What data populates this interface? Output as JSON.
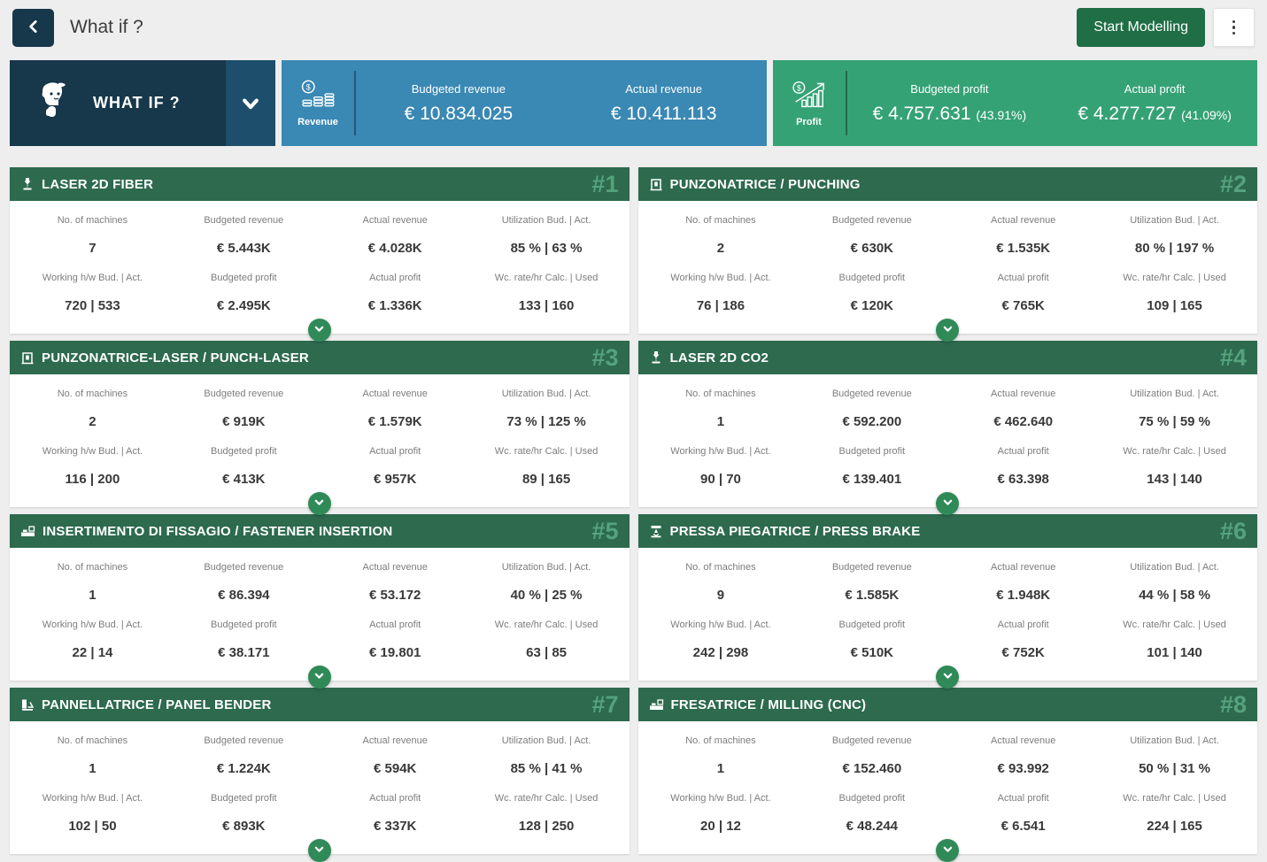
{
  "colors": {
    "navy": "#17374b",
    "navy_light": "#1d4e6b",
    "blue": "#3a88b4",
    "green": "#35a276",
    "header_green": "#2d6a4e",
    "button_green": "#206e45",
    "expand_green": "#2f8a58",
    "rank_green": "#55a27c",
    "page_bg": "#eeeeee"
  },
  "header": {
    "title": "What if ?",
    "start_modelling_label": "Start Modelling"
  },
  "summary": {
    "whatif_label": "WHAT IF ?",
    "revenue": {
      "tab_label": "Revenue",
      "budgeted_label": "Budgeted revenue",
      "budgeted_value": "€ 10.834.025",
      "actual_label": "Actual revenue",
      "actual_value": "€ 10.411.113"
    },
    "profit": {
      "tab_label": "Profit",
      "budgeted_label": "Budgeted profit",
      "budgeted_value": "€ 4.757.631",
      "budgeted_pct": "(43.91%)",
      "actual_label": "Actual profit",
      "actual_value": "€ 4.277.727",
      "actual_pct": "(41.09%)"
    }
  },
  "field_labels": {
    "no_of_machines": "No. of machines",
    "budgeted_revenue": "Budgeted revenue",
    "actual_revenue": "Actual revenue",
    "utilization": "Utilization Bud. | Act.",
    "working_hw": "Working h/w Bud. | Act.",
    "budgeted_profit": "Budgeted profit",
    "actual_profit": "Actual profit",
    "wc_rate": "Wc. rate/hr Calc. | Used"
  },
  "machines": [
    {
      "rank": "#1",
      "name": "LASER 2D FIBER",
      "icon": "laser-cutter-icon",
      "no_of_machines": "7",
      "budgeted_revenue": "€ 5.443K",
      "actual_revenue": "€ 4.028K",
      "utilization": "85 % | 63 %",
      "working_hw": "720 | 533",
      "budgeted_profit": "€ 2.495K",
      "actual_profit": "€ 1.336K",
      "wc_rate": "133 | 160"
    },
    {
      "rank": "#2",
      "name": "PUNZONATRICE / PUNCHING",
      "icon": "punching-machine-icon",
      "no_of_machines": "2",
      "budgeted_revenue": "€ 630K",
      "actual_revenue": "€ 1.535K",
      "utilization": "80 % | 197 %",
      "working_hw": "76 | 186",
      "budgeted_profit": "€ 120K",
      "actual_profit": "€ 765K",
      "wc_rate": "109 | 165"
    },
    {
      "rank": "#3",
      "name": "PUNZONATRICE-LASER / PUNCH-LASER",
      "icon": "punching-machine-icon",
      "no_of_machines": "2",
      "budgeted_revenue": "€ 919K",
      "actual_revenue": "€ 1.579K",
      "utilization": "73 % | 125 %",
      "working_hw": "116 | 200",
      "budgeted_profit": "€ 413K",
      "actual_profit": "€ 957K",
      "wc_rate": "89 | 165"
    },
    {
      "rank": "#4",
      "name": "LASER 2D CO2",
      "icon": "laser-cutter-icon",
      "no_of_machines": "1",
      "budgeted_revenue": "€ 592.200",
      "actual_revenue": "€ 462.640",
      "utilization": "75 % | 59 %",
      "working_hw": "90 | 70",
      "budgeted_profit": "€ 139.401",
      "actual_profit": "€ 63.398",
      "wc_rate": "143 | 140"
    },
    {
      "rank": "#5",
      "name": "INSERTIMENTO DI FISSAGIO / FASTENER INSERTION",
      "icon": "fastener-insertion-icon",
      "no_of_machines": "1",
      "budgeted_revenue": "€ 86.394",
      "actual_revenue": "€ 53.172",
      "utilization": "40 % | 25 %",
      "working_hw": "22 | 14",
      "budgeted_profit": "€ 38.171",
      "actual_profit": "€ 19.801",
      "wc_rate": "63 | 85"
    },
    {
      "rank": "#6",
      "name": "PRESSA PIEGATRICE / PRESS BRAKE",
      "icon": "press-brake-icon",
      "no_of_machines": "9",
      "budgeted_revenue": "€ 1.585K",
      "actual_revenue": "€ 1.948K",
      "utilization": "44 % | 58 %",
      "working_hw": "242 | 298",
      "budgeted_profit": "€ 510K",
      "actual_profit": "€ 752K",
      "wc_rate": "101 | 140"
    },
    {
      "rank": "#7",
      "name": "PANNELLATRICE / PANEL BENDER",
      "icon": "panel-bender-icon",
      "no_of_machines": "1",
      "budgeted_revenue": "€ 1.224K",
      "actual_revenue": "€ 594K",
      "utilization": "85 % | 41 %",
      "working_hw": "102 | 50",
      "budgeted_profit": "€ 893K",
      "actual_profit": "€ 337K",
      "wc_rate": "128 | 250"
    },
    {
      "rank": "#8",
      "name": "FRESATRICE / MILLING (CNC)",
      "icon": "milling-machine-icon",
      "no_of_machines": "1",
      "budgeted_revenue": "€ 152.460",
      "actual_revenue": "€ 93.992",
      "utilization": "50 % | 31 %",
      "working_hw": "20 | 12",
      "budgeted_profit": "€ 48.244",
      "actual_profit": "€ 6.541",
      "wc_rate": "224 | 165"
    }
  ]
}
